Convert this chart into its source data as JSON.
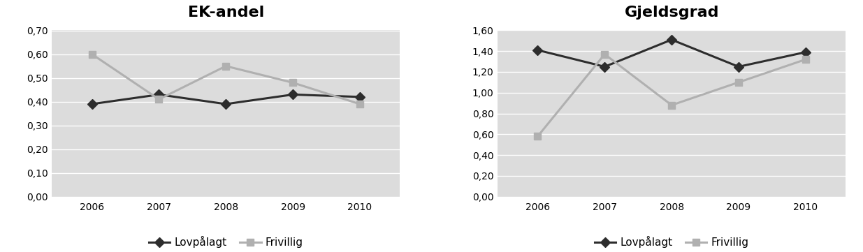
{
  "years": [
    2006,
    2007,
    2008,
    2009,
    2010
  ],
  "ek_lovpalaegt": [
    0.39,
    0.43,
    0.39,
    0.43,
    0.42
  ],
  "ek_frivillig": [
    0.6,
    0.41,
    0.55,
    0.48,
    0.39
  ],
  "gj_lovpalaegt": [
    1.41,
    1.25,
    1.51,
    1.25,
    1.39
  ],
  "gj_frivillig": [
    0.58,
    1.37,
    0.88,
    1.1,
    1.32
  ],
  "ek_title": "EK-andel",
  "gj_title": "Gjeldsgrad",
  "ek_ylim": [
    0.0,
    0.7
  ],
  "ek_yticks": [
    0.0,
    0.1,
    0.2,
    0.3,
    0.4,
    0.5,
    0.6,
    0.7
  ],
  "gj_ylim": [
    0.0,
    1.6
  ],
  "gj_yticks": [
    0.0,
    0.2,
    0.4,
    0.6,
    0.8,
    1.0,
    1.2,
    1.4,
    1.6
  ],
  "legend_lovpalaegt": "Lovpålagt",
  "legend_frivillig": "Frivillig",
  "color_lovpalaegt": "#2d2d2d",
  "color_frivillig": "#b0b0b0",
  "bg_color": "#dcdcdc",
  "fig_bg": "#ffffff",
  "title_fontsize": 16,
  "tick_fontsize": 10,
  "legend_fontsize": 11,
  "linewidth": 2.2,
  "markersize": 7
}
